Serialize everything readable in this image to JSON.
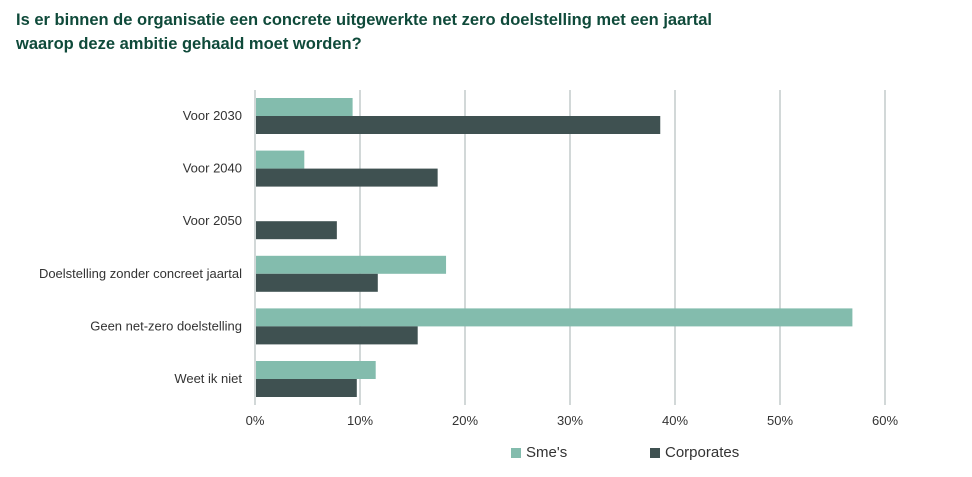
{
  "title": {
    "line1": "Is er binnen de organisatie een concrete uitgewerkte net zero doelstelling met een jaartal",
    "line2": "waarop deze ambitie gehaald moet worden?"
  },
  "colors": {
    "smes": "#83bcad",
    "corporates": "#3f5151",
    "grid": "#c3cccc",
    "title": "#0f4a3a"
  },
  "chart_data": {
    "type": "bar",
    "orientation": "horizontal",
    "categories": [
      "Voor 2030",
      "Voor 2040",
      "Voor 2050",
      "Doelstelling zonder concreet jaartal",
      "Geen net-zero doelstelling",
      "Weet ik niet"
    ],
    "series": [
      {
        "name": "Sme's",
        "values": [
          9.2,
          4.6,
          0,
          18.1,
          56.8,
          11.4
        ]
      },
      {
        "name": "Corporates",
        "values": [
          38.5,
          17.3,
          7.7,
          11.6,
          15.4,
          9.6
        ]
      }
    ],
    "xlim": [
      0,
      60
    ],
    "xticks": [
      "0%",
      "10%",
      "20%",
      "30%",
      "40%",
      "50%",
      "60%"
    ],
    "grid": true,
    "legend_position": "bottom"
  }
}
